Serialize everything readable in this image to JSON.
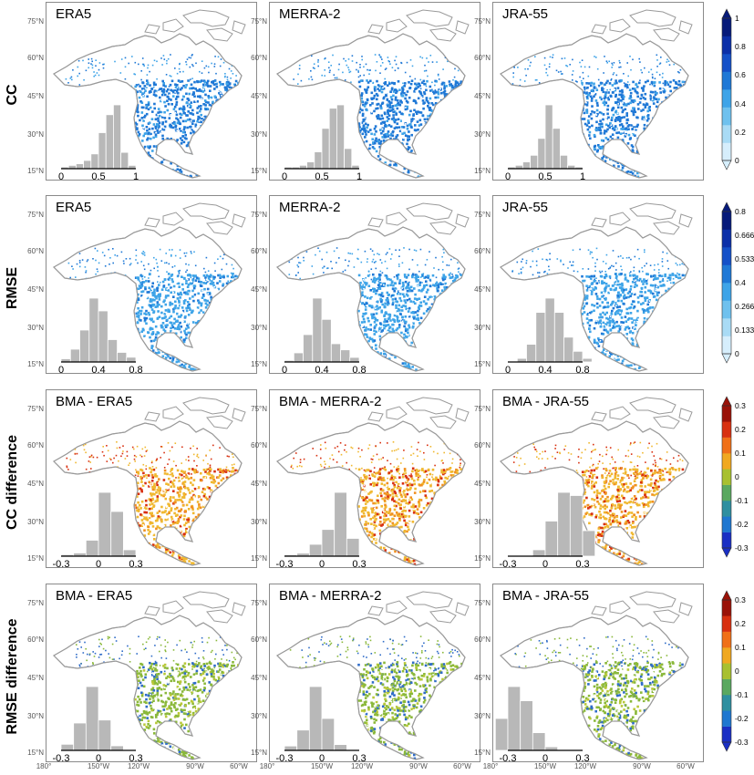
{
  "rows": [
    {
      "label": "CC",
      "colorbar": {
        "ticks": [
          "0",
          "0.2",
          "0.4",
          "0.6",
          "0.8",
          "1"
        ],
        "colors": [
          "#d6eefc",
          "#a9dbf5",
          "#6fc1ee",
          "#3ea4e8",
          "#1f78d6",
          "#1450c8",
          "#0b2fa8",
          "#061a7a"
        ]
      },
      "panels": [
        {
          "title": "ERA5",
          "histogram": {
            "xlim": [
              0,
              1
            ],
            "xticks": [
              "0",
              "0.5",
              "1"
            ],
            "bins": [
              0.05,
              0.15,
              0.25,
              0.35,
              0.45,
              0.55,
              0.65,
              0.75,
              0.85,
              0.95
            ],
            "heights": [
              1,
              2,
              3,
              5,
              9,
              22,
              33,
              39,
              10,
              2
            ]
          }
        },
        {
          "title": "MERRA-2",
          "histogram": {
            "xlim": [
              0,
              1
            ],
            "xticks": [
              "0",
              "0.5",
              "1"
            ],
            "bins": [
              0.05,
              0.15,
              0.25,
              0.35,
              0.45,
              0.55,
              0.65,
              0.75,
              0.85,
              0.95
            ],
            "heights": [
              1,
              1,
              2,
              4,
              10,
              24,
              36,
              38,
              12,
              2
            ]
          }
        },
        {
          "title": "JRA-55",
          "histogram": {
            "xlim": [
              0,
              1
            ],
            "xticks": [
              "0",
              "0.5",
              "1"
            ],
            "bins": [
              0.05,
              0.15,
              0.25,
              0.35,
              0.45,
              0.55,
              0.65,
              0.75,
              0.85,
              0.95
            ],
            "heights": [
              1,
              2,
              4,
              8,
              18,
              38,
              24,
              8,
              2,
              1
            ]
          }
        }
      ]
    },
    {
      "label": "RMSE",
      "colorbar": {
        "ticks": [
          "0",
          "0.133",
          "0.266",
          "0.4",
          "0.533",
          "0.666",
          "0.8"
        ],
        "colors": [
          "#d6eefc",
          "#a9dbf5",
          "#6fc1ee",
          "#3ea4e8",
          "#1f78d6",
          "#1450c8",
          "#0b2fa8",
          "#061a7a"
        ]
      },
      "panels": [
        {
          "title": "ERA5",
          "histogram": {
            "xlim": [
              0,
              0.8
            ],
            "xticks": [
              "0",
              "0.4",
              "0.8"
            ],
            "bins": [
              0.05,
              0.15,
              0.25,
              0.35,
              0.45,
              0.55,
              0.65,
              0.75
            ],
            "heights": [
              2,
              8,
              20,
              40,
              32,
              14,
              6,
              3
            ]
          }
        },
        {
          "title": "MERRA-2",
          "histogram": {
            "xlim": [
              0,
              0.8
            ],
            "xticks": [
              "0",
              "0.4",
              "0.8"
            ],
            "bins": [
              0.05,
              0.15,
              0.25,
              0.35,
              0.45,
              0.55,
              0.65,
              0.75
            ],
            "heights": [
              1,
              6,
              18,
              42,
              28,
              12,
              8,
              3
            ]
          }
        },
        {
          "title": "JRA-55",
          "histogram": {
            "xlim": [
              0,
              0.8
            ],
            "xticks": [
              "0",
              "0.4",
              "0.8"
            ],
            "bins": [
              0.15,
              0.25,
              0.35,
              0.45,
              0.55,
              0.65,
              0.75,
              0.85
            ],
            "heights": [
              2,
              10,
              28,
              36,
              28,
              14,
              6,
              2
            ]
          }
        }
      ]
    },
    {
      "label": "CC difference",
      "colorbar": {
        "ticks": [
          "-0.3",
          "-0.2",
          "-0.1",
          "0",
          "0.1",
          "0.2",
          "0.3"
        ],
        "colors": [
          "#1a2fc4",
          "#1f77d0",
          "#2f8fa0",
          "#5aa860",
          "#a8c030",
          "#f0a820",
          "#f07018",
          "#d83010",
          "#9a1208"
        ]
      },
      "panels": [
        {
          "title": "BMA - ERA5",
          "histogram": {
            "xlim": [
              -0.3,
              0.3
            ],
            "xticks": [
              "-0.3",
              "0",
              "0.3"
            ],
            "bins": [
              -0.25,
              -0.15,
              -0.05,
              0.05,
              0.15,
              0.25
            ],
            "heights": [
              1,
              2,
              10,
              40,
              28,
              4
            ]
          }
        },
        {
          "title": "BMA - MERRA-2",
          "histogram": {
            "xlim": [
              -0.3,
              0.3
            ],
            "xticks": [
              "-0.3",
              "0",
              "0.3"
            ],
            "bins": [
              -0.25,
              -0.15,
              -0.05,
              0.05,
              0.15,
              0.25
            ],
            "heights": [
              1,
              2,
              8,
              18,
              43,
              12
            ]
          }
        },
        {
          "title": "BMA - JRA-55",
          "histogram": {
            "xlim": [
              -0.3,
              0.3
            ],
            "xticks": [
              "-0.3",
              "0",
              "0.3"
            ],
            "bins": [
              -0.05,
              0.05,
              0.15,
              0.25,
              0.35
            ],
            "heights": [
              4,
              22,
              40,
              38,
              16
            ]
          }
        }
      ]
    },
    {
      "label": "RMSE difference",
      "colorbar": {
        "ticks": [
          "-0.3",
          "-0.2",
          "-0.1",
          "0",
          "0.1",
          "0.2",
          "0.3"
        ],
        "colors": [
          "#1a2fc4",
          "#1f77d0",
          "#2f8fa0",
          "#5aa860",
          "#a8c030",
          "#f0a820",
          "#f07018",
          "#d83010",
          "#9a1208"
        ]
      },
      "panels": [
        {
          "title": "BMA - ERA5",
          "histogram": {
            "xlim": [
              -0.3,
              0.3
            ],
            "xticks": [
              "-0.3",
              "0",
              "0.3"
            ],
            "bins": [
              -0.25,
              -0.15,
              -0.05,
              0.05,
              0.15
            ],
            "heights": [
              4,
              18,
              42,
              20,
              3
            ]
          }
        },
        {
          "title": "BMA - MERRA-2",
          "histogram": {
            "xlim": [
              -0.3,
              0.3
            ],
            "xticks": [
              "-0.3",
              "0",
              "0.3"
            ],
            "bins": [
              -0.25,
              -0.15,
              -0.05,
              0.05,
              0.15
            ],
            "heights": [
              3,
              14,
              44,
              22,
              4
            ]
          }
        },
        {
          "title": "BMA - JRA-55",
          "histogram": {
            "xlim": [
              -0.3,
              0.3
            ],
            "xticks": [
              "-0.3",
              "0",
              "0.3"
            ],
            "bins": [
              -0.35,
              -0.25,
              -0.15,
              -0.05,
              0.05
            ],
            "heights": [
              18,
              36,
              28,
              10,
              2
            ]
          }
        }
      ]
    }
  ],
  "lat_labels": [
    "75°N",
    "60°N",
    "45°N",
    "30°N",
    "15°N"
  ],
  "lon_labels": [
    "180°",
    "150°W",
    "120°W",
    "90°W",
    "60°W"
  ],
  "map_fill": {
    "CC": [
      "#1f78d6",
      "#1f78d6",
      "#3ea4e8"
    ],
    "RMSE": [
      "#3ea4e8",
      "#3ea4e8",
      "#1f78d6"
    ],
    "CC difference": [
      "#f0b830",
      "#f09020",
      "#d83010"
    ],
    "RMSE difference": [
      "#8ab83a",
      "#b8c838",
      "#2f6cc8"
    ]
  },
  "chart_data": {
    "type": "heatmap",
    "title": "",
    "panels": [
      "CC / ERA5",
      "CC / MERRA-2",
      "CC / JRA-55",
      "RMSE / ERA5",
      "RMSE / MERRA-2",
      "RMSE / JRA-55",
      "CC difference / BMA - ERA5",
      "CC difference / BMA - MERRA-2",
      "CC difference / BMA - JRA-55",
      "RMSE difference / BMA - ERA5",
      "RMSE difference / BMA - MERRA-2",
      "RMSE difference / BMA - JRA-55"
    ],
    "xlabel": "",
    "ylabel": "",
    "x_ticks": [
      "180°",
      "150°W",
      "120°W",
      "90°W",
      "60°W"
    ],
    "y_ticks": [
      "75°N",
      "60°N",
      "45°N",
      "30°N",
      "15°N"
    ],
    "inset": "histogram of station values",
    "grid": false,
    "legend": "colorbar right of each row"
  }
}
